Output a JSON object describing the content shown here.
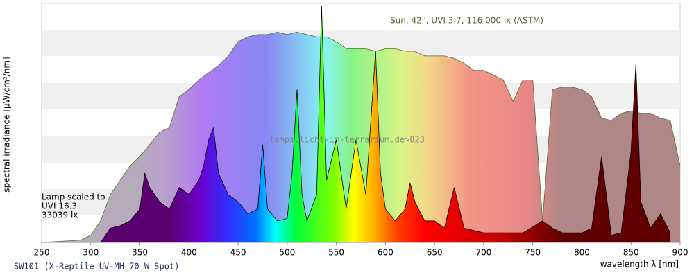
{
  "chart_data": {
    "type": "area",
    "xlabel": "wavelength λ [nm]",
    "ylabel": "spectral irradiance [µW/cm²/nm]",
    "footer": "SW101 (X-Reptile UV-MH 70 W Spot)",
    "watermark": "lamps.licht-im-terrarium.de>823",
    "xlim": [
      250,
      900
    ],
    "xticks": [
      250,
      300,
      350,
      400,
      450,
      500,
      550,
      600,
      650,
      700,
      750,
      800,
      850,
      900
    ],
    "ylim": [
      0,
      100
    ],
    "series": [
      {
        "name": "Sun, 42°, UVI 3.7, 116 000 lx (ASTM)",
        "color": "#556b2f",
        "fill": "#b0b0b0",
        "x": [
          250,
          290,
          300,
          310,
          320,
          330,
          340,
          350,
          360,
          370,
          380,
          390,
          400,
          410,
          420,
          430,
          440,
          450,
          460,
          470,
          480,
          490,
          500,
          510,
          520,
          530,
          540,
          550,
          560,
          570,
          580,
          590,
          600,
          610,
          620,
          630,
          640,
          650,
          660,
          670,
          680,
          690,
          700,
          710,
          720,
          730,
          740,
          750,
          760,
          770,
          780,
          790,
          800,
          810,
          820,
          830,
          840,
          850,
          860,
          870,
          880,
          890,
          900
        ],
        "values": [
          0,
          1,
          3,
          9,
          20,
          26,
          32,
          36,
          41,
          46,
          48,
          61,
          64,
          68,
          71,
          74,
          78,
          84,
          86,
          87,
          87,
          88,
          87,
          88,
          87,
          86,
          86,
          84,
          81,
          81,
          81,
          80,
          81,
          81,
          80,
          80,
          78,
          78,
          78,
          77,
          75,
          72,
          72,
          70,
          68,
          59,
          68,
          68,
          9,
          64,
          65,
          65,
          64,
          61,
          52,
          51,
          54,
          55,
          54,
          54,
          52,
          51,
          32
        ]
      },
      {
        "label_lines": [
          "Lamp scaled to",
          "UVI 16.3",
          "33039 lx"
        ],
        "color": "#000000",
        "fill": "#333333",
        "x": [
          250,
          310,
          320,
          330,
          340,
          350,
          355,
          360,
          370,
          380,
          390,
          400,
          410,
          415,
          420,
          425,
          430,
          440,
          450,
          460,
          470,
          475,
          480,
          490,
          500,
          505,
          510,
          515,
          520,
          530,
          535,
          540,
          550,
          560,
          570,
          580,
          590,
          595,
          600,
          610,
          620,
          625,
          630,
          640,
          650,
          660,
          670,
          680,
          700,
          720,
          740,
          760,
          770,
          780,
          800,
          810,
          820,
          830,
          840,
          850,
          855,
          860,
          870,
          880,
          890
        ],
        "values": [
          0,
          0,
          6,
          7,
          9,
          14,
          29,
          23,
          17,
          14,
          23,
          20,
          26,
          32,
          43,
          48,
          29,
          20,
          17,
          12,
          14,
          41,
          14,
          9,
          10,
          29,
          64,
          20,
          9,
          20,
          99,
          26,
          43,
          14,
          43,
          20,
          80,
          29,
          14,
          9,
          14,
          25,
          17,
          9,
          9,
          6,
          23,
          6,
          4,
          4,
          4,
          9,
          6,
          4,
          4,
          6,
          36,
          3,
          4,
          38,
          75,
          17,
          6,
          12,
          4
        ]
      }
    ]
  }
}
